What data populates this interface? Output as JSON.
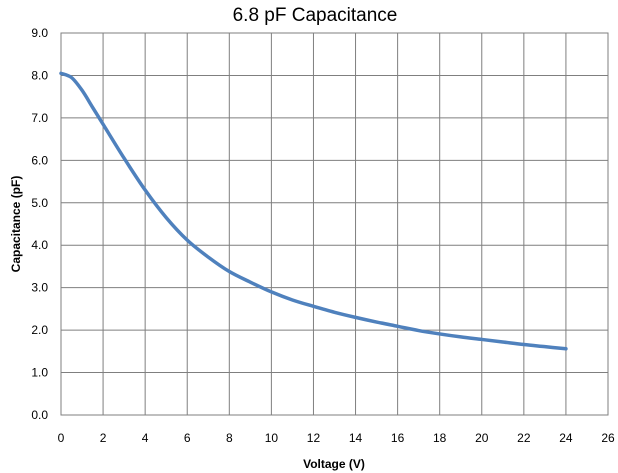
{
  "chart_data": {
    "type": "line",
    "title": "6.8 pF Capacitance",
    "xlabel": "Voltage (V)",
    "ylabel": "Capacitance (pF)",
    "xlim": [
      0,
      26
    ],
    "ylim": [
      0,
      9
    ],
    "x_ticks": [
      "0",
      "2",
      "4",
      "6",
      "8",
      "10",
      "12",
      "14",
      "16",
      "18",
      "20",
      "22",
      "24",
      "26"
    ],
    "y_ticks": [
      "0.0",
      "1.0",
      "2.0",
      "3.0",
      "4.0",
      "5.0",
      "6.0",
      "7.0",
      "8.0",
      "9.0"
    ],
    "grid": true,
    "legend": "none",
    "series": [
      {
        "color": "#4f81bd",
        "x": [
          0,
          0.5,
          1,
          1.5,
          2,
          3,
          4,
          5,
          6,
          7,
          8,
          9,
          10,
          11,
          12,
          13,
          14,
          15,
          16,
          17,
          18,
          19,
          20,
          21,
          22,
          23,
          24
        ],
        "y": [
          8.05,
          7.95,
          7.65,
          7.25,
          6.85,
          6.05,
          5.3,
          4.65,
          4.12,
          3.72,
          3.38,
          3.13,
          2.9,
          2.71,
          2.56,
          2.42,
          2.3,
          2.19,
          2.09,
          1.99,
          1.91,
          1.84,
          1.78,
          1.72,
          1.66,
          1.61,
          1.56
        ]
      }
    ]
  }
}
